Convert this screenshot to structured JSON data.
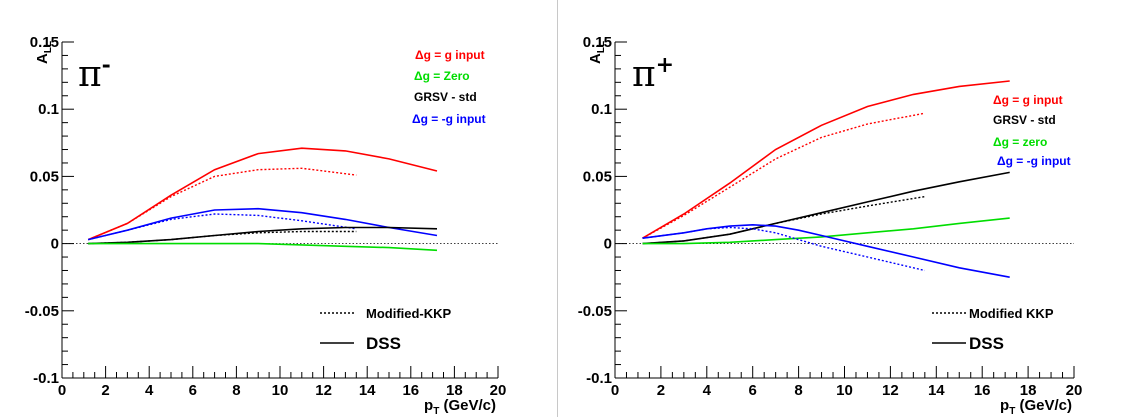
{
  "chart_data": [
    {
      "type": "line",
      "panel_label_base": "π",
      "panel_label_sup": "-",
      "ylabel_main": "A",
      "ylabel_sub": "LL",
      "xlabel_main": "p",
      "xlabel_sub": "T",
      "xlabel_rest": " (GeV/c)",
      "xlim": [
        0,
        20
      ],
      "ylim": [
        -0.1,
        0.15
      ],
      "x_tick_labels": [
        "0",
        "2",
        "4",
        "6",
        "8",
        "10",
        "12",
        "14",
        "16",
        "18",
        "20"
      ],
      "y_ticks": [
        -0.1,
        -0.05,
        0,
        0.05,
        0.1,
        0.15
      ],
      "y_tick_labels": [
        "-0.1",
        "-0.05",
        "0",
        "0.05",
        "0.1",
        "0.15"
      ],
      "zero_line": true,
      "legend_placement": "top-right",
      "legend": [
        {
          "label": "Δg = g input",
          "color": "#ff0000"
        },
        {
          "label": "Δg = Zero",
          "color": "#00dd00"
        },
        {
          "label": "GRSV - std",
          "color": "#000000"
        },
        {
          "label": "Δg = -g input",
          "color": "#0000ff"
        }
      ],
      "style_legend": [
        {
          "label": "Modified-KKP",
          "dash": "dotted"
        },
        {
          "label": "DSS",
          "dash": "solid"
        }
      ],
      "series": [
        {
          "color": "#ff0000",
          "style": "solid",
          "x": [
            1.2,
            3,
            5,
            7,
            9,
            11,
            13,
            15,
            17.2
          ],
          "y": [
            0.003,
            0.015,
            0.036,
            0.055,
            0.067,
            0.071,
            0.069,
            0.063,
            0.054
          ]
        },
        {
          "color": "#ff0000",
          "style": "dotted",
          "x": [
            1.2,
            3,
            5,
            7,
            9,
            11,
            13.5
          ],
          "y": [
            0.003,
            0.015,
            0.035,
            0.05,
            0.055,
            0.056,
            0.051
          ]
        },
        {
          "color": "#0000ff",
          "style": "solid",
          "x": [
            1.2,
            3,
            5,
            7,
            9,
            11,
            13,
            15,
            17.2
          ],
          "y": [
            0.003,
            0.01,
            0.019,
            0.025,
            0.026,
            0.023,
            0.018,
            0.012,
            0.006
          ]
        },
        {
          "color": "#0000ff",
          "style": "dotted",
          "x": [
            1.2,
            3,
            5,
            7,
            9,
            11,
            13.5
          ],
          "y": [
            0.003,
            0.01,
            0.018,
            0.022,
            0.021,
            0.017,
            0.011
          ]
        },
        {
          "color": "#000000",
          "style": "solid",
          "x": [
            1.2,
            3,
            5,
            7,
            9,
            11,
            13,
            15,
            17.2
          ],
          "y": [
            0.0,
            0.001,
            0.003,
            0.006,
            0.009,
            0.011,
            0.012,
            0.012,
            0.011
          ]
        },
        {
          "color": "#000000",
          "style": "dotted",
          "x": [
            1.2,
            3,
            5,
            7,
            9,
            11,
            13.5
          ],
          "y": [
            0.0,
            0.001,
            0.003,
            0.006,
            0.008,
            0.009,
            0.009
          ]
        },
        {
          "color": "#00dd00",
          "style": "solid",
          "x": [
            1.2,
            3,
            5,
            7,
            9,
            11,
            13,
            15,
            17.2
          ],
          "y": [
            0.0,
            0.0,
            0.0,
            0.0,
            0.0,
            -0.001,
            -0.002,
            -0.003,
            -0.005
          ]
        }
      ]
    },
    {
      "type": "line",
      "panel_label_base": "π",
      "panel_label_sup": "+",
      "ylabel_main": "A",
      "ylabel_sub": "LL",
      "xlabel_main": "p",
      "xlabel_sub": "T",
      "xlabel_rest": " (GeV/c)",
      "xlim": [
        0,
        20
      ],
      "ylim": [
        -0.1,
        0.15
      ],
      "x_tick_labels": [
        "0",
        "2",
        "4",
        "6",
        "8",
        "10",
        "12",
        "14",
        "16",
        "18",
        "20"
      ],
      "y_ticks": [
        -0.1,
        -0.05,
        0,
        0.05,
        0.1,
        0.15
      ],
      "y_tick_labels": [
        "-0.1",
        "-0.05",
        "0",
        "0.05",
        "0.1",
        "0.15"
      ],
      "zero_line": true,
      "legend_placement": "top-right",
      "legend": [
        {
          "label": "Δg = g input",
          "color": "#ff0000"
        },
        {
          "label": "GRSV - std",
          "color": "#000000"
        },
        {
          "label": "Δg = zero",
          "color": "#00dd00"
        },
        {
          "label": "Δg = -g input",
          "color": "#0000ff"
        }
      ],
      "style_legend": [
        {
          "label": "Modified KKP",
          "dash": "dotted"
        },
        {
          "label": "DSS",
          "dash": "solid"
        }
      ],
      "series": [
        {
          "color": "#ff0000",
          "style": "solid",
          "x": [
            1.2,
            3,
            5,
            7,
            9,
            11,
            13,
            15,
            17.2
          ],
          "y": [
            0.004,
            0.022,
            0.045,
            0.07,
            0.088,
            0.102,
            0.111,
            0.117,
            0.121
          ]
        },
        {
          "color": "#ff0000",
          "style": "dotted",
          "x": [
            1.2,
            3,
            5,
            7,
            9,
            11,
            13.5
          ],
          "y": [
            0.004,
            0.021,
            0.042,
            0.063,
            0.079,
            0.089,
            0.097
          ]
        },
        {
          "color": "#000000",
          "style": "solid",
          "x": [
            1.2,
            3,
            5,
            7,
            9,
            11,
            13,
            15,
            17.2
          ],
          "y": [
            0.0,
            0.002,
            0.007,
            0.015,
            0.023,
            0.031,
            0.039,
            0.046,
            0.053
          ]
        },
        {
          "color": "#000000",
          "style": "dotted",
          "x": [
            1.2,
            3,
            5,
            7,
            9,
            11,
            13.5
          ],
          "y": [
            0.0,
            0.002,
            0.007,
            0.015,
            0.022,
            0.028,
            0.035
          ]
        },
        {
          "color": "#00dd00",
          "style": "solid",
          "x": [
            1.2,
            3,
            5,
            7,
            9,
            11,
            13,
            15,
            17.2
          ],
          "y": [
            0.0,
            0.0,
            0.001,
            0.003,
            0.005,
            0.008,
            0.011,
            0.015,
            0.019
          ]
        },
        {
          "color": "#0000ff",
          "style": "solid",
          "x": [
            1.2,
            3,
            4,
            5,
            6,
            7,
            8,
            9,
            11,
            13,
            15,
            17.2
          ],
          "y": [
            0.004,
            0.008,
            0.011,
            0.013,
            0.014,
            0.013,
            0.01,
            0.006,
            -0.002,
            -0.01,
            -0.018,
            -0.025
          ]
        },
        {
          "color": "#0000ff",
          "style": "dotted",
          "x": [
            1.2,
            3,
            4,
            5,
            6,
            7,
            8,
            9,
            11,
            13.5
          ],
          "y": [
            0.004,
            0.008,
            0.011,
            0.012,
            0.011,
            0.008,
            0.003,
            -0.002,
            -0.01,
            -0.02
          ]
        }
      ]
    }
  ]
}
